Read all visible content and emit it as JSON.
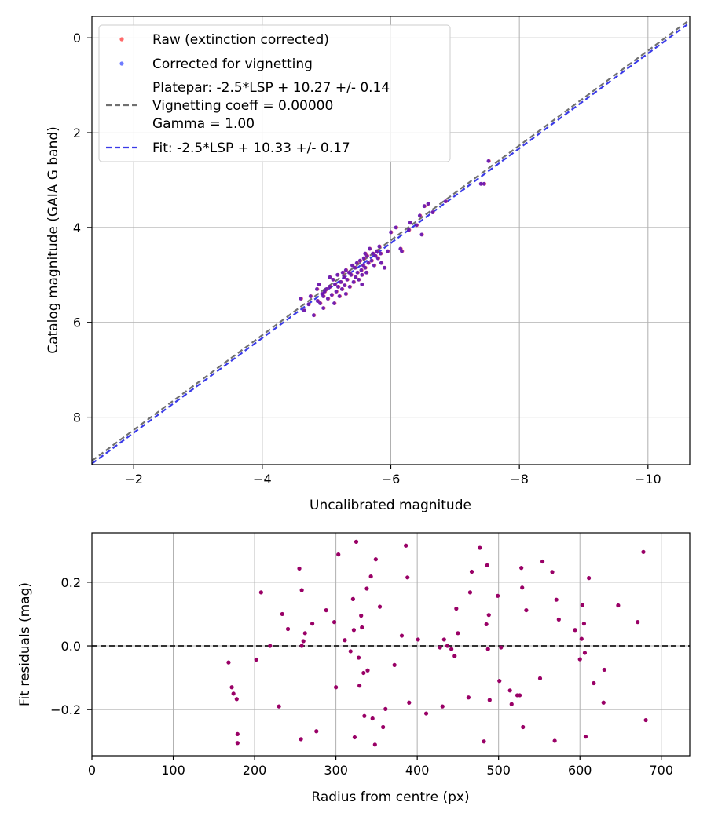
{
  "chart_data": [
    {
      "type": "scatter",
      "xlabel": "Uncalibrated magnitude",
      "ylabel": "Catalog magnitude (GAIA G band)",
      "xlim": [
        -1.35,
        -10.65
      ],
      "ylim": [
        9.0,
        -0.45
      ],
      "xticks": [
        -2,
        -4,
        -6,
        -8,
        -10
      ],
      "xtick_labels": [
        "−2",
        "−4",
        "−6",
        "−8",
        "−10"
      ],
      "yticks": [
        0,
        2,
        4,
        6,
        8
      ],
      "ytick_labels": [
        "0",
        "2",
        "4",
        "6",
        "8"
      ],
      "grid": true,
      "legend_position": "top-left",
      "legend": {
        "raw": "Raw (extinction corrected)",
        "corrected": "Corrected for vignetting",
        "platepar_lines": [
          "Platepar: -2.5*LSP + 10.27 +/- 0.14",
          "Vignetting coeff = 0.00000",
          "Gamma = 1.00"
        ],
        "fit": "Fit: -2.5*LSP + 10.33 +/- 0.17"
      },
      "colors": {
        "raw": "#ff4444",
        "corrected": "#4a5aff",
        "overlap": "#5a10b8",
        "platepar": "#707070",
        "fit": "#3a3ae8"
      },
      "lines": [
        {
          "name": "Platepar",
          "intercept": 10.27,
          "slope": 1.0
        },
        {
          "name": "Fit",
          "intercept": 10.33,
          "slope": 1.0
        }
      ],
      "points": [
        [
          -4.6,
          5.5
        ],
        [
          -4.65,
          5.75
        ],
        [
          -4.72,
          5.62
        ],
        [
          -4.75,
          5.45
        ],
        [
          -4.8,
          5.85
        ],
        [
          -4.85,
          5.3
        ],
        [
          -4.86,
          5.55
        ],
        [
          -4.88,
          5.2
        ],
        [
          -4.9,
          5.6
        ],
        [
          -4.93,
          5.4
        ],
        [
          -4.95,
          5.7
        ],
        [
          -4.97,
          5.35
        ],
        [
          -5.0,
          5.3
        ],
        [
          -5.02,
          5.5
        ],
        [
          -5.05,
          5.25
        ],
        [
          -5.08,
          5.42
        ],
        [
          -5.1,
          5.1
        ],
        [
          -5.12,
          5.6
        ],
        [
          -5.13,
          5.2
        ],
        [
          -5.15,
          5.35
        ],
        [
          -5.17,
          5.0
        ],
        [
          -5.18,
          5.25
        ],
        [
          -5.2,
          5.45
        ],
        [
          -5.22,
          5.15
        ],
        [
          -5.24,
          5.3
        ],
        [
          -5.25,
          4.95
        ],
        [
          -5.27,
          5.05
        ],
        [
          -5.28,
          5.22
        ],
        [
          -5.3,
          4.9
        ],
        [
          -5.3,
          5.4
        ],
        [
          -5.32,
          5.1
        ],
        [
          -5.35,
          4.95
        ],
        [
          -5.36,
          5.25
        ],
        [
          -5.38,
          5.0
        ],
        [
          -5.4,
          4.8
        ],
        [
          -5.42,
          5.15
        ],
        [
          -5.44,
          4.85
        ],
        [
          -5.45,
          5.05
        ],
        [
          -5.47,
          4.75
        ],
        [
          -5.48,
          4.95
        ],
        [
          -5.5,
          5.1
        ],
        [
          -5.52,
          4.7
        ],
        [
          -5.54,
          4.9
        ],
        [
          -5.55,
          5.0
        ],
        [
          -5.57,
          4.8
        ],
        [
          -5.58,
          4.65
        ],
        [
          -5.6,
          4.85
        ],
        [
          -5.62,
          4.95
        ],
        [
          -5.63,
          4.6
        ],
        [
          -5.65,
          4.75
        ],
        [
          -5.67,
          4.45
        ],
        [
          -5.7,
          4.7
        ],
        [
          -5.72,
          4.55
        ],
        [
          -5.74,
          4.8
        ],
        [
          -5.76,
          4.6
        ],
        [
          -5.78,
          4.5
        ],
        [
          -5.8,
          4.65
        ],
        [
          -5.82,
          4.4
        ],
        [
          -5.84,
          4.55
        ],
        [
          -5.85,
          4.75
        ],
        [
          -5.9,
          4.85
        ],
        [
          -5.95,
          4.5
        ],
        [
          -6.0,
          4.1
        ],
        [
          -6.08,
          4.0
        ],
        [
          -6.15,
          4.45
        ],
        [
          -6.17,
          4.5
        ],
        [
          -6.28,
          4.05
        ],
        [
          -6.3,
          3.9
        ],
        [
          -6.4,
          3.95
        ],
        [
          -6.45,
          3.75
        ],
        [
          -6.48,
          4.15
        ],
        [
          -6.52,
          3.55
        ],
        [
          -6.58,
          3.5
        ],
        [
          -6.65,
          3.68
        ],
        [
          -6.85,
          3.45
        ],
        [
          -7.4,
          3.08
        ],
        [
          -7.45,
          3.08
        ],
        [
          -7.52,
          2.6
        ],
        [
          -5.55,
          5.2
        ],
        [
          -5.05,
          5.05
        ],
        [
          -4.95,
          5.45
        ],
        [
          -5.6,
          4.55
        ]
      ]
    },
    {
      "type": "scatter",
      "xlabel": "Radius from centre (px)",
      "ylabel": "Fit residuals (mag)",
      "xlim": [
        0,
        735
      ],
      "ylim": [
        -0.345,
        0.355
      ],
      "xticks": [
        0,
        100,
        200,
        300,
        400,
        500,
        600,
        700
      ],
      "xtick_labels": [
        "0",
        "100",
        "200",
        "300",
        "400",
        "500",
        "600",
        "700"
      ],
      "yticks": [
        -0.2,
        0.0,
        0.2
      ],
      "ytick_labels": [
        "−0.2",
        "0.0",
        "0.2"
      ],
      "grid": true,
      "reference_line": 0.0,
      "colors": {
        "points": "#990066",
        "zero_line": "#333333"
      },
      "points": [
        [
          168,
          -0.052
        ],
        [
          172,
          -0.13
        ],
        [
          174,
          -0.15
        ],
        [
          178,
          -0.167
        ],
        [
          179,
          -0.277
        ],
        [
          179,
          -0.305
        ],
        [
          202,
          -0.043
        ],
        [
          208,
          0.168
        ],
        [
          219,
          0.0
        ],
        [
          230,
          -0.19
        ],
        [
          234,
          0.1
        ],
        [
          241,
          0.053
        ],
        [
          255,
          0.243
        ],
        [
          257,
          -0.293
        ],
        [
          258,
          0.175
        ],
        [
          258,
          0.0
        ],
        [
          260,
          0.015
        ],
        [
          262,
          0.04
        ],
        [
          271,
          0.07
        ],
        [
          276,
          -0.268
        ],
        [
          288,
          0.112
        ],
        [
          298,
          0.075
        ],
        [
          300,
          -0.13
        ],
        [
          303,
          0.287
        ],
        [
          311,
          0.018
        ],
        [
          318,
          -0.017
        ],
        [
          321,
          0.147
        ],
        [
          322,
          0.05
        ],
        [
          323,
          -0.287
        ],
        [
          325,
          0.327
        ],
        [
          328,
          -0.037
        ],
        [
          329,
          -0.125
        ],
        [
          331,
          0.095
        ],
        [
          332,
          0.058
        ],
        [
          334,
          -0.085
        ],
        [
          335,
          -0.22
        ],
        [
          338,
          0.18
        ],
        [
          339,
          -0.077
        ],
        [
          343,
          0.218
        ],
        [
          345,
          -0.228
        ],
        [
          348,
          -0.31
        ],
        [
          349,
          0.272
        ],
        [
          354,
          0.123
        ],
        [
          358,
          -0.255
        ],
        [
          361,
          -0.198
        ],
        [
          372,
          -0.06
        ],
        [
          381,
          0.032
        ],
        [
          386,
          0.315
        ],
        [
          388,
          0.215
        ],
        [
          390,
          -0.178
        ],
        [
          401,
          0.02
        ],
        [
          411,
          -0.212
        ],
        [
          428,
          -0.005
        ],
        [
          431,
          -0.19
        ],
        [
          433,
          0.02
        ],
        [
          437,
          0.0
        ],
        [
          442,
          -0.01
        ],
        [
          446,
          -0.032
        ],
        [
          448,
          0.117
        ],
        [
          450,
          0.04
        ],
        [
          463,
          -0.162
        ],
        [
          465,
          0.168
        ],
        [
          467,
          0.233
        ],
        [
          477,
          0.308
        ],
        [
          482,
          -0.3
        ],
        [
          485,
          0.068
        ],
        [
          486,
          0.253
        ],
        [
          487,
          -0.01
        ],
        [
          488,
          0.097
        ],
        [
          489,
          -0.17
        ],
        [
          499,
          0.157
        ],
        [
          501,
          -0.11
        ],
        [
          503,
          -0.005
        ],
        [
          514,
          -0.14
        ],
        [
          516,
          -0.183
        ],
        [
          523,
          -0.155
        ],
        [
          526,
          -0.155
        ],
        [
          528,
          0.245
        ],
        [
          529,
          0.183
        ],
        [
          530,
          -0.255
        ],
        [
          534,
          0.112
        ],
        [
          551,
          -0.102
        ],
        [
          554,
          0.265
        ],
        [
          566,
          0.232
        ],
        [
          569,
          -0.298
        ],
        [
          571,
          0.145
        ],
        [
          574,
          0.083
        ],
        [
          594,
          0.05
        ],
        [
          600,
          -0.042
        ],
        [
          602,
          0.022
        ],
        [
          603,
          0.128
        ],
        [
          605,
          0.07
        ],
        [
          606,
          -0.022
        ],
        [
          607,
          -0.285
        ],
        [
          611,
          0.213
        ],
        [
          617,
          -0.117
        ],
        [
          629,
          -0.178
        ],
        [
          630,
          -0.075
        ],
        [
          647,
          0.127
        ],
        [
          671,
          0.075
        ],
        [
          678,
          0.295
        ],
        [
          681,
          -0.233
        ]
      ]
    }
  ]
}
